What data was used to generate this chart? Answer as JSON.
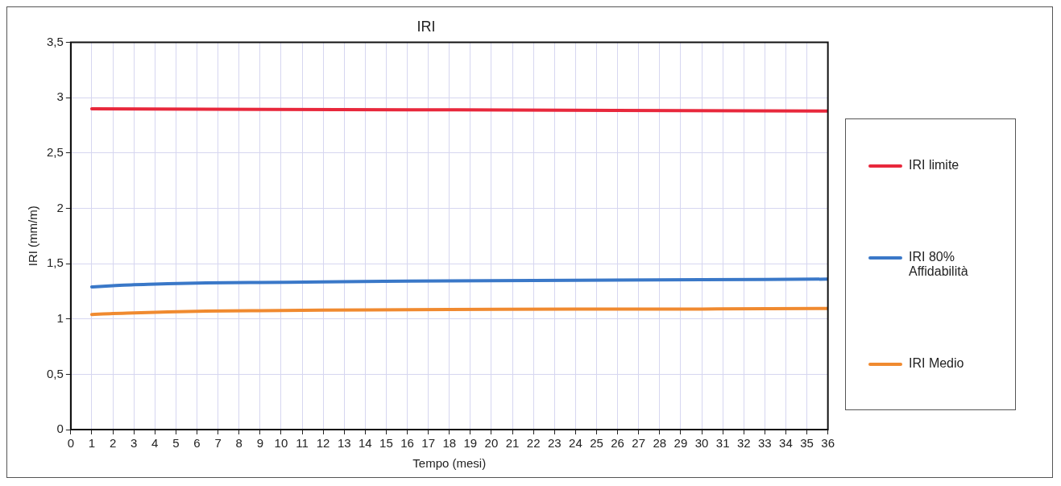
{
  "chart_data": {
    "type": "line",
    "title": "IRI",
    "xlabel": "Tempo (mesi)",
    "ylabel": "IRI (mm/m)",
    "xlim": [
      0,
      36
    ],
    "xticks": [
      0,
      1,
      2,
      3,
      4,
      5,
      6,
      7,
      8,
      9,
      10,
      11,
      12,
      13,
      14,
      15,
      16,
      17,
      18,
      19,
      20,
      21,
      22,
      23,
      24,
      25,
      26,
      27,
      28,
      29,
      30,
      31,
      32,
      33,
      34,
      35,
      36
    ],
    "ylim": [
      0,
      3.5
    ],
    "yticks": [
      {
        "value": 0,
        "label": "0"
      },
      {
        "value": 0.5,
        "label": "0,5"
      },
      {
        "value": 1,
        "label": "1"
      },
      {
        "value": 1.5,
        "label": "1,5"
      },
      {
        "value": 2,
        "label": "2"
      },
      {
        "value": 2.5,
        "label": "2,5"
      },
      {
        "value": 3,
        "label": "3"
      },
      {
        "value": 3.5,
        "label": "3,5"
      }
    ],
    "grid": true,
    "legend": "right",
    "marker": "none",
    "line_style": "solid",
    "series": [
      {
        "name": "IRI limite",
        "color": "#e8283c",
        "x": [
          1,
          18,
          36
        ],
        "values": [
          2.9,
          2.89,
          2.88
        ]
      },
      {
        "name": "IRI 80% Affidabilità",
        "color": "#3a78c8",
        "x": [
          1,
          2,
          3,
          4,
          6,
          9,
          12,
          18,
          24,
          30,
          36
        ],
        "values": [
          1.29,
          1.3,
          1.31,
          1.315,
          1.325,
          1.33,
          1.335,
          1.345,
          1.35,
          1.355,
          1.36
        ]
      },
      {
        "name": "IRI Medio",
        "color": "#f08a30",
        "x": [
          1,
          2,
          3,
          4,
          6,
          9,
          12,
          18,
          24,
          30,
          36
        ],
        "values": [
          1.04,
          1.05,
          1.055,
          1.06,
          1.07,
          1.075,
          1.08,
          1.085,
          1.09,
          1.09,
          1.095
        ]
      }
    ]
  }
}
